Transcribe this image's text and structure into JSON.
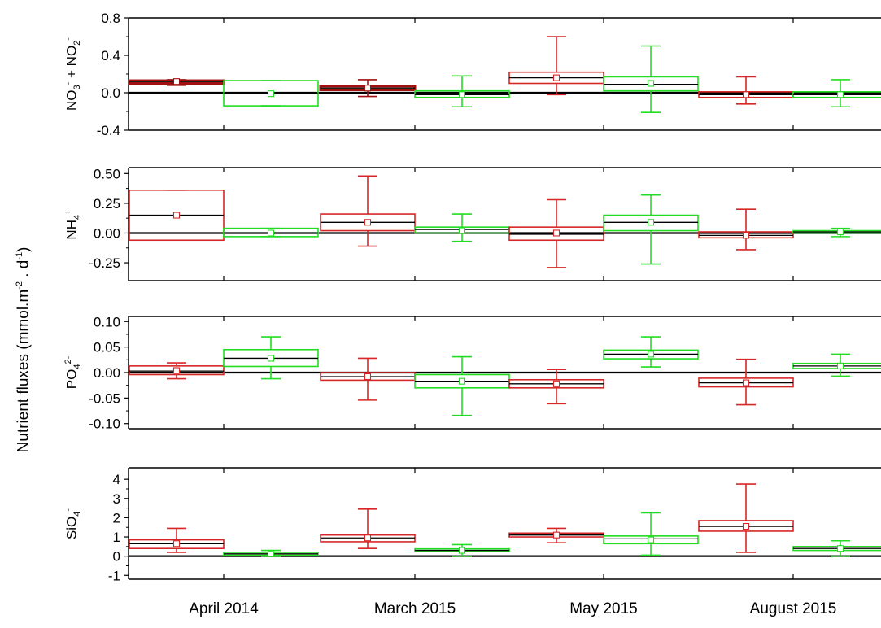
{
  "chart_data": {
    "type": "box",
    "y_axis_label": {
      "main": "Nutrient fluxes (mmol.m",
      "exp1": "-2",
      "mid": " . d",
      "exp2": "-1",
      "end": ")"
    },
    "categories": [
      "April 2014",
      "March 2015",
      "May 2015",
      "August 2015"
    ],
    "series_colors": [
      "#d62728",
      "#22dd22"
    ],
    "dark_red": "#a01010",
    "panels": [
      {
        "id": "no3-no2",
        "label_parts": [
          {
            "t": "NO"
          },
          {
            "t": "3",
            "sub": true
          },
          {
            "t": "-",
            "sup": true
          },
          {
            "t": " + NO"
          },
          {
            "t": "2",
            "sub": true
          },
          {
            "t": "-",
            "sup": true
          }
        ],
        "ylim": [
          -0.4,
          0.8
        ],
        "ticks": [
          -0.4,
          0.0,
          0.4,
          0.8
        ],
        "tick_labels": [
          "-0.4",
          "0.0",
          "0.4",
          "0.8"
        ],
        "boxes": [
          {
            "cat": 0,
            "series": 0,
            "dark": true,
            "q1": 0.1,
            "median": 0.12,
            "q3": 0.13,
            "mean": 0.12,
            "whisker_low": 0.08,
            "whisker_high": 0.14
          },
          {
            "cat": 0,
            "series": 1,
            "q1": -0.14,
            "median": -0.01,
            "q3": 0.13,
            "mean": -0.01,
            "whisker_low": -0.14,
            "whisker_high": 0.13
          },
          {
            "cat": 1,
            "series": 0,
            "dark": true,
            "q1": 0.03,
            "median": 0.05,
            "q3": 0.07,
            "mean": 0.05,
            "whisker_low": -0.04,
            "whisker_high": 0.14
          },
          {
            "cat": 1,
            "series": 1,
            "q1": -0.05,
            "median": -0.02,
            "q3": 0.02,
            "mean": -0.02,
            "whisker_low": -0.15,
            "whisker_high": 0.18
          },
          {
            "cat": 2,
            "series": 0,
            "q1": 0.1,
            "median": 0.16,
            "q3": 0.22,
            "mean": 0.16,
            "whisker_low": -0.02,
            "whisker_high": 0.6
          },
          {
            "cat": 2,
            "series": 1,
            "q1": 0.02,
            "median": 0.09,
            "q3": 0.17,
            "mean": 0.1,
            "whisker_low": -0.21,
            "whisker_high": 0.5
          },
          {
            "cat": 3,
            "series": 0,
            "q1": -0.05,
            "median": -0.02,
            "q3": 0.01,
            "mean": -0.02,
            "whisker_low": -0.12,
            "whisker_high": 0.17
          },
          {
            "cat": 3,
            "series": 1,
            "q1": -0.05,
            "median": -0.02,
            "q3": 0.01,
            "mean": -0.02,
            "whisker_low": -0.15,
            "whisker_high": 0.14
          }
        ]
      },
      {
        "id": "nh4",
        "label_parts": [
          {
            "t": "NH"
          },
          {
            "t": "4",
            "sub": true
          },
          {
            "t": "+",
            "sup": true
          }
        ],
        "ylim": [
          -0.4,
          0.55
        ],
        "ticks": [
          -0.25,
          0.0,
          0.25,
          0.5
        ],
        "tick_labels": [
          "-0.25",
          "0.00",
          "0.25",
          "0.50"
        ],
        "boxes": [
          {
            "cat": 0,
            "series": 0,
            "q1": -0.06,
            "median": 0.15,
            "q3": 0.36,
            "mean": 0.15,
            "whisker_low": -0.06,
            "whisker_high": 0.36
          },
          {
            "cat": 0,
            "series": 1,
            "q1": -0.03,
            "median": 0.0,
            "q3": 0.04,
            "mean": 0.0,
            "whisker_low": -0.03,
            "whisker_high": 0.04
          },
          {
            "cat": 1,
            "series": 0,
            "q1": 0.02,
            "median": 0.09,
            "q3": 0.16,
            "mean": 0.09,
            "whisker_low": -0.11,
            "whisker_high": 0.48
          },
          {
            "cat": 1,
            "series": 1,
            "q1": 0.0,
            "median": 0.03,
            "q3": 0.05,
            "mean": 0.02,
            "whisker_low": -0.07,
            "whisker_high": 0.16
          },
          {
            "cat": 2,
            "series": 0,
            "q1": -0.06,
            "median": -0.01,
            "q3": 0.05,
            "mean": 0.0,
            "whisker_low": -0.29,
            "whisker_high": 0.28
          },
          {
            "cat": 2,
            "series": 1,
            "q1": 0.02,
            "median": 0.09,
            "q3": 0.15,
            "mean": 0.09,
            "whisker_low": -0.26,
            "whisker_high": 0.32
          },
          {
            "cat": 3,
            "series": 0,
            "q1": -0.04,
            "median": -0.02,
            "q3": 0.01,
            "mean": -0.02,
            "whisker_low": -0.14,
            "whisker_high": 0.2
          },
          {
            "cat": 3,
            "series": 1,
            "q1": 0.0,
            "median": 0.01,
            "q3": 0.02,
            "mean": 0.01,
            "whisker_low": -0.03,
            "whisker_high": 0.04
          }
        ]
      },
      {
        "id": "po4",
        "label_parts": [
          {
            "t": "PO"
          },
          {
            "t": "4",
            "sub": true
          },
          {
            "t": "2-",
            "sup": true
          }
        ],
        "ylim": [
          -0.11,
          0.11
        ],
        "ticks": [
          -0.1,
          -0.05,
          0.0,
          0.05,
          0.1
        ],
        "tick_labels": [
          "-0.10",
          "-0.05",
          "0.00",
          "0.05",
          "0.10"
        ],
        "boxes": [
          {
            "cat": 0,
            "series": 0,
            "q1": -0.004,
            "median": 0.003,
            "q3": 0.013,
            "mean": 0.004,
            "whisker_low": -0.012,
            "whisker_high": 0.019
          },
          {
            "cat": 0,
            "series": 1,
            "q1": 0.012,
            "median": 0.028,
            "q3": 0.045,
            "mean": 0.028,
            "whisker_low": -0.012,
            "whisker_high": 0.07
          },
          {
            "cat": 1,
            "series": 0,
            "q1": -0.015,
            "median": -0.008,
            "q3": 0.0,
            "mean": -0.008,
            "whisker_low": -0.054,
            "whisker_high": 0.028
          },
          {
            "cat": 1,
            "series": 1,
            "q1": -0.03,
            "median": -0.017,
            "q3": -0.004,
            "mean": -0.017,
            "whisker_low": -0.084,
            "whisker_high": 0.031
          },
          {
            "cat": 2,
            "series": 0,
            "q1": -0.03,
            "median": -0.022,
            "q3": -0.014,
            "mean": -0.022,
            "whisker_low": -0.061,
            "whisker_high": 0.006
          },
          {
            "cat": 2,
            "series": 1,
            "q1": 0.027,
            "median": 0.036,
            "q3": 0.044,
            "mean": 0.036,
            "whisker_low": 0.011,
            "whisker_high": 0.07
          },
          {
            "cat": 3,
            "series": 0,
            "q1": -0.028,
            "median": -0.02,
            "q3": -0.011,
            "mean": -0.02,
            "whisker_low": -0.063,
            "whisker_high": 0.026
          },
          {
            "cat": 3,
            "series": 1,
            "q1": 0.008,
            "median": 0.013,
            "q3": 0.018,
            "mean": 0.013,
            "whisker_low": -0.007,
            "whisker_high": 0.036
          }
        ]
      },
      {
        "id": "sio4",
        "label_parts": [
          {
            "t": "SiO"
          },
          {
            "t": "4",
            "sub": true
          },
          {
            "t": "-",
            "sup": true
          }
        ],
        "ylim": [
          -1.2,
          4.6
        ],
        "ticks": [
          -1,
          0,
          1,
          2,
          3,
          4
        ],
        "tick_labels": [
          "-1",
          "0",
          "1",
          "2",
          "3",
          "4"
        ],
        "boxes": [
          {
            "cat": 0,
            "series": 0,
            "q1": 0.4,
            "median": 0.65,
            "q3": 0.85,
            "mean": 0.65,
            "whisker_low": 0.2,
            "whisker_high": 1.45
          },
          {
            "cat": 0,
            "series": 1,
            "q1": 0.05,
            "median": 0.12,
            "q3": 0.2,
            "mean": 0.12,
            "whisker_low": 0.0,
            "whisker_high": 0.3
          },
          {
            "cat": 1,
            "series": 0,
            "q1": 0.75,
            "median": 0.95,
            "q3": 1.1,
            "mean": 0.95,
            "whisker_low": 0.4,
            "whisker_high": 2.45
          },
          {
            "cat": 1,
            "series": 1,
            "q1": 0.25,
            "median": 0.3,
            "q3": 0.38,
            "mean": 0.3,
            "whisker_low": 0.0,
            "whisker_high": 0.6
          },
          {
            "cat": 2,
            "series": 0,
            "q1": 1.0,
            "median": 1.1,
            "q3": 1.2,
            "mean": 1.1,
            "whisker_low": 0.7,
            "whisker_high": 1.45
          },
          {
            "cat": 2,
            "series": 1,
            "q1": 0.65,
            "median": 0.9,
            "q3": 1.05,
            "mean": 0.85,
            "whisker_low": 0.05,
            "whisker_high": 2.25
          },
          {
            "cat": 3,
            "series": 0,
            "q1": 1.3,
            "median": 1.55,
            "q3": 1.85,
            "mean": 1.55,
            "whisker_low": 0.2,
            "whisker_high": 3.75
          },
          {
            "cat": 3,
            "series": 1,
            "q1": 0.3,
            "median": 0.4,
            "q3": 0.5,
            "mean": 0.4,
            "whisker_low": 0.0,
            "whisker_high": 0.8
          }
        ]
      }
    ]
  }
}
